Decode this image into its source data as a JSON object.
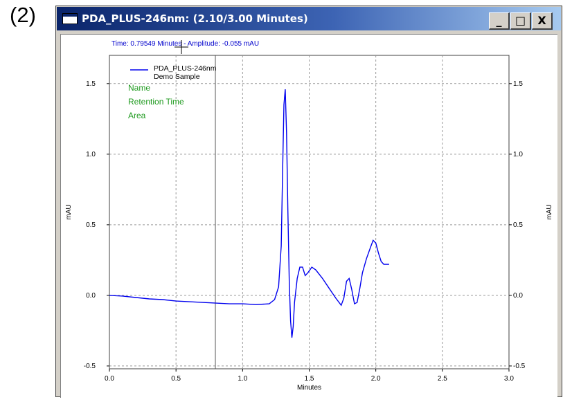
{
  "panel_label": "(2)",
  "window": {
    "title": "PDA_PLUS-246nm: (2.10/3.00 Minutes)",
    "minimize_glyph": "_",
    "maximize_glyph": "□",
    "close_glyph": "X",
    "icon": "window-app-icon"
  },
  "cursor_readout": "Time:  0.79549 Minutes - Amplitude:  -0.055 mAU",
  "legend": {
    "series_name": "PDA_PLUS-246nm",
    "sample_name": "Demo Sample",
    "peak_fields": [
      "Name",
      "Retention Time",
      "Area"
    ]
  },
  "colors": {
    "trace": "#0000ee",
    "readout": "#0000cc",
    "peak_fields": "#1f9a1f",
    "grid": "#999999",
    "title_start": "#0a246a",
    "title_end": "#a6caf0"
  },
  "chart_data": {
    "type": "line",
    "title": "",
    "xlabel": "Minutes",
    "ylabel": "mAU",
    "ylabel_right": "mAU",
    "xlim": [
      0.0,
      3.0
    ],
    "ylim": [
      -0.52,
      1.7
    ],
    "x_ticks": [
      0.0,
      0.5,
      1.0,
      1.5,
      2.0,
      2.5,
      3.0
    ],
    "x_tick_labels": [
      "0.0",
      "0.5",
      "1.0",
      "1.5",
      "2.0",
      "2.5",
      "3.0"
    ],
    "y_ticks": [
      -0.5,
      0.0,
      0.5,
      1.0,
      1.5
    ],
    "y_tick_labels": [
      "-0.5",
      "0.0",
      "0.5",
      "1.0",
      "1.5"
    ],
    "grid": true,
    "grid_style": "dashed",
    "legend_position": "top-left",
    "cursor": {
      "time": 0.79549,
      "amplitude": -0.055
    },
    "series": [
      {
        "name": "PDA_PLUS-246nm",
        "x": [
          0.0,
          0.1,
          0.2,
          0.3,
          0.4,
          0.5,
          0.6,
          0.7,
          0.8,
          0.9,
          1.0,
          1.1,
          1.2,
          1.24,
          1.27,
          1.29,
          1.3,
          1.31,
          1.32,
          1.33,
          1.34,
          1.35,
          1.36,
          1.37,
          1.38,
          1.39,
          1.41,
          1.43,
          1.45,
          1.47,
          1.49,
          1.52,
          1.55,
          1.6,
          1.65,
          1.7,
          1.74,
          1.76,
          1.78,
          1.8,
          1.82,
          1.84,
          1.86,
          1.88,
          1.9,
          1.93,
          1.96,
          1.98,
          2.0,
          2.02,
          2.04,
          2.06,
          2.08,
          2.1
        ],
        "y": [
          0.0,
          -0.005,
          -0.015,
          -0.025,
          -0.03,
          -0.04,
          -0.045,
          -0.05,
          -0.055,
          -0.06,
          -0.06,
          -0.065,
          -0.06,
          -0.03,
          0.06,
          0.35,
          0.85,
          1.35,
          1.46,
          1.15,
          0.6,
          0.1,
          -0.18,
          -0.3,
          -0.22,
          -0.05,
          0.12,
          0.2,
          0.2,
          0.14,
          0.16,
          0.2,
          0.18,
          0.12,
          0.05,
          -0.02,
          -0.07,
          -0.02,
          0.1,
          0.12,
          0.04,
          -0.06,
          -0.05,
          0.05,
          0.16,
          0.26,
          0.34,
          0.39,
          0.37,
          0.3,
          0.24,
          0.22,
          0.22,
          0.22
        ]
      }
    ]
  }
}
